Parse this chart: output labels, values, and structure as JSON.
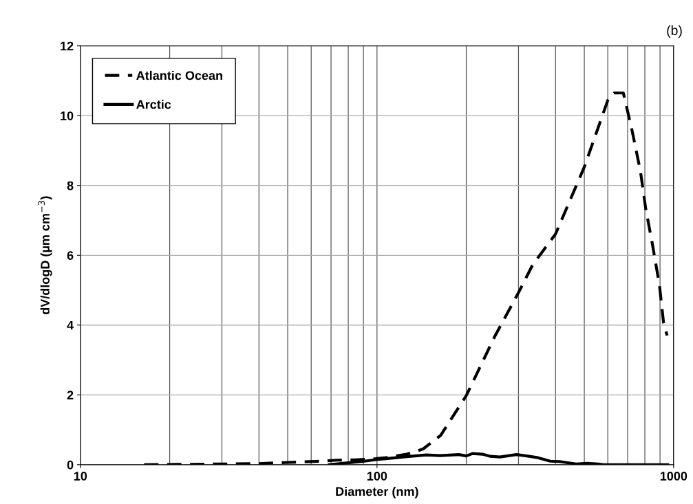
{
  "chart_data": {
    "type": "line",
    "xlabel": "Diameter (nm)",
    "ylabel": "dV/dlogD (µm cm$^{−3}$)",
    "annotations": [
      "(b)"
    ],
    "log": "x",
    "xlim": [
      10,
      1000
    ],
    "xticks": [
      10,
      100,
      1000
    ],
    "ylim": [
      0,
      12
    ],
    "yticks": [
      0,
      2,
      4,
      6,
      8,
      10,
      12
    ],
    "grid": true,
    "legend": "top left",
    "marker": "none",
    "series": [
      {
        "name": "Atlantic Ocean",
        "color": "#000000",
        "line_style": "dashed",
        "x": [
          16.4,
          40,
          48.6,
          56,
          64.5,
          73,
          84,
          99,
          107,
          126,
          143,
          164,
          200,
          249,
          300,
          334,
          400,
          500,
          600,
          629,
          677,
          687,
          725,
          773,
          805,
          850,
          896,
          925,
          951
        ],
        "values": [
          0,
          0.03,
          0.06,
          0.08,
          0.1,
          0.13,
          0.14,
          0.17,
          0.2,
          0.3,
          0.45,
          0.84,
          1.98,
          3.66,
          4.93,
          5.71,
          6.61,
          8.53,
          10.44,
          10.65,
          10.65,
          10.42,
          9.56,
          8.41,
          7.35,
          6.28,
          5.14,
          4.07,
          3.7
        ]
      },
      {
        "name": "Arctic",
        "color": "#000000",
        "line_style": "solid",
        "x": [
          69,
          90.7,
          100,
          107,
          126,
          147,
          163,
          189,
          200,
          210,
          227,
          241,
          260,
          295,
          320,
          349,
          384,
          413,
          469,
          511,
          556,
          580,
          955
        ],
        "values": [
          0,
          0.1,
          0.15,
          0.17,
          0.23,
          0.28,
          0.26,
          0.29,
          0.25,
          0.32,
          0.3,
          0.24,
          0.22,
          0.29,
          0.25,
          0.2,
          0.1,
          0.09,
          0.02,
          0.04,
          0.02,
          0,
          0
        ]
      }
    ]
  }
}
